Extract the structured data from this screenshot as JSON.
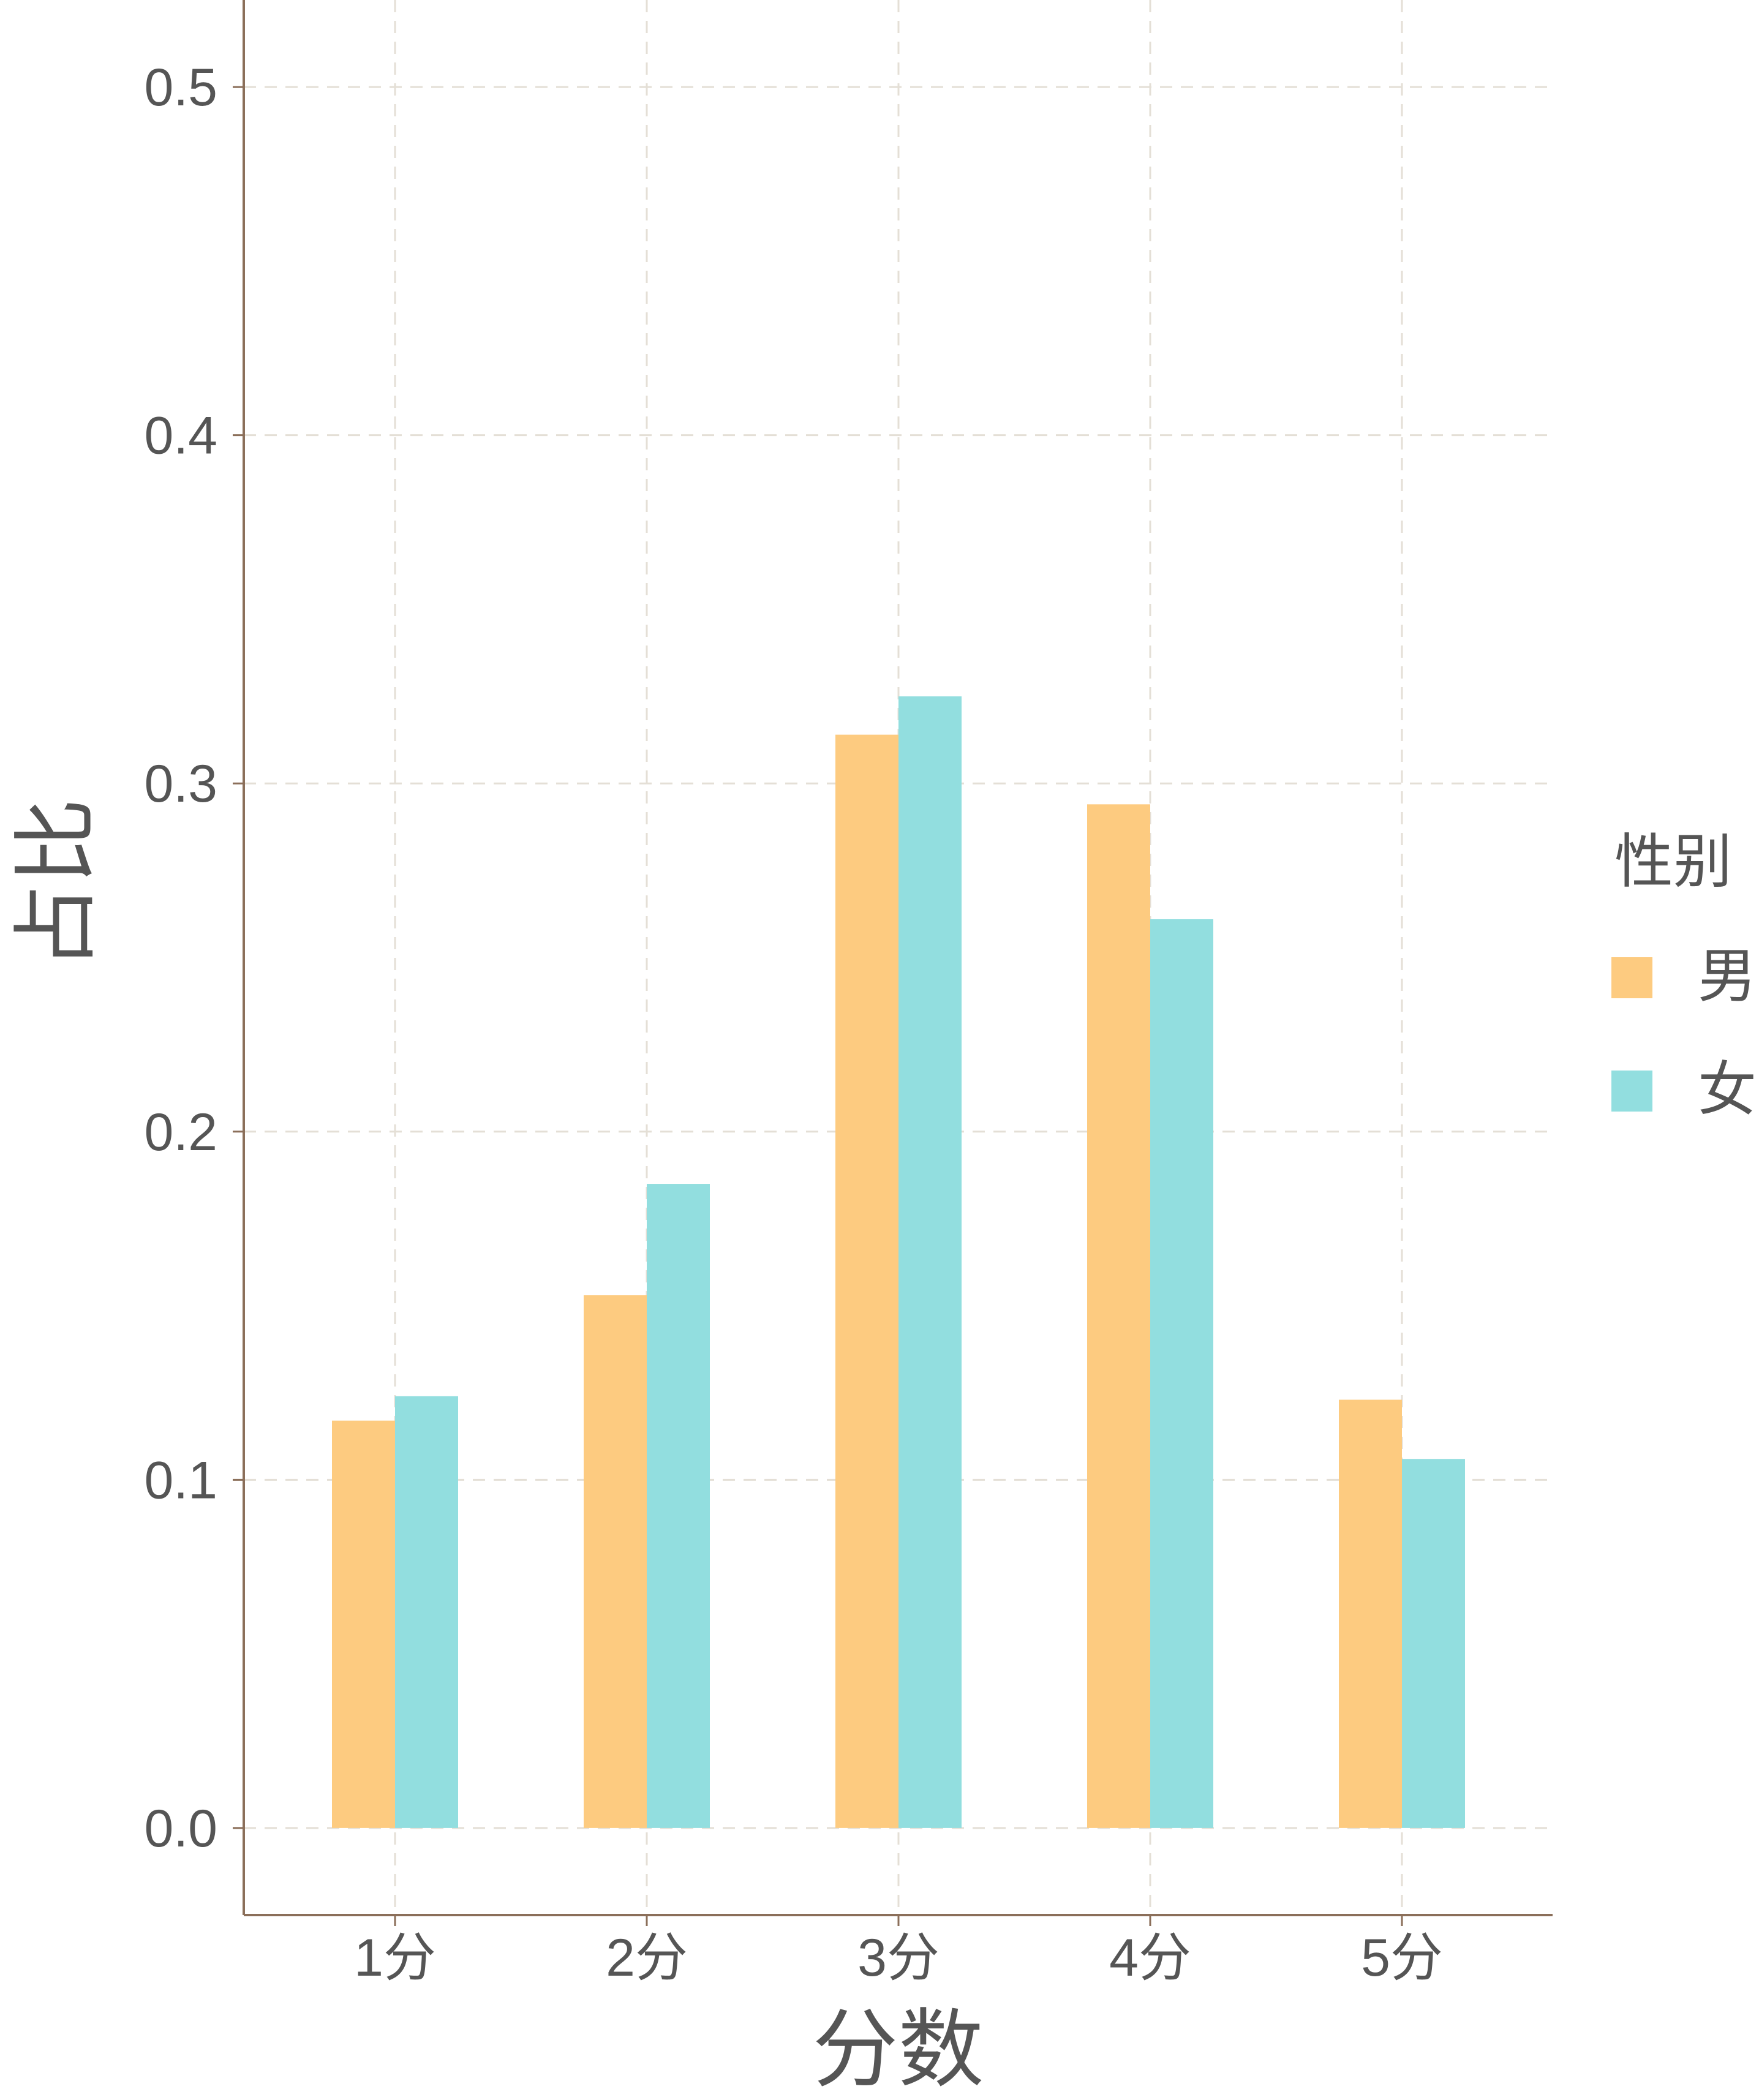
{
  "chart_data": {
    "type": "bar",
    "title": "",
    "xlabel": "分数",
    "ylabel": "占比",
    "categories": [
      "1分",
      "2分",
      "3分",
      "4分",
      "5分"
    ],
    "series": [
      {
        "name": "男",
        "color": "#FDCB80",
        "values": [
          0.117,
          0.153,
          0.314,
          0.294,
          0.123
        ]
      },
      {
        "name": "女",
        "color": "#92DEDF",
        "values": [
          0.124,
          0.185,
          0.325,
          0.261,
          0.106
        ]
      }
    ],
    "ylim": [
      -0.025,
      0.525
    ],
    "yticks": [
      0.0,
      0.1,
      0.2,
      0.3,
      0.4,
      0.5
    ],
    "ytick_labels": [
      "0.0",
      "0.1",
      "0.2",
      "0.3",
      "0.4",
      "0.5"
    ],
    "grid": true,
    "legend": {
      "title": "性别",
      "position": "right"
    }
  }
}
